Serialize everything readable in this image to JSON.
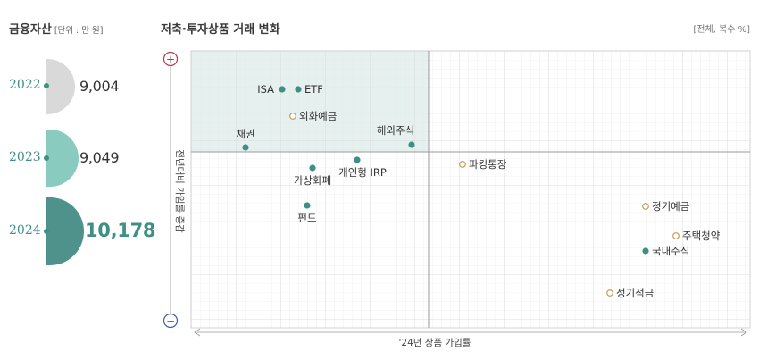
{
  "assets": {
    "title": "금융자산",
    "unit": "[단위 : 만 원]",
    "items": [
      {
        "year": "2022",
        "value": "9,004",
        "amount": 9004
      },
      {
        "year": "2023",
        "value": "9,049",
        "amount": 9049
      },
      {
        "year": "2024",
        "value": "10,178",
        "amount": 10178
      }
    ],
    "colors": [
      "#d6d6d6",
      "#86c7bc",
      "#4f928b"
    ]
  },
  "chart": {
    "title": "저축·투자상품 거래 변화",
    "scope": "[전체, 복수 %]",
    "plus_symbol": "+",
    "minus_symbol": "−"
  },
  "chart_data": {
    "type": "scatter",
    "title": "저축·투자상품 거래 변화",
    "xlabel": "'24년 상품 가입률",
    "ylabel": "전년대비 가입률 증감",
    "grid": true,
    "colors": {
      "filled": "#3f8f87",
      "hollow": "#c99a5a",
      "highlight_quadrant": "#e6f1ef"
    },
    "points": [
      {
        "label": "ISA",
        "marker": "filled"
      },
      {
        "label": "ETF",
        "marker": "filled"
      },
      {
        "label": "외화예금",
        "marker": "hollow"
      },
      {
        "label": "채권",
        "marker": "filled"
      },
      {
        "label": "해외주식",
        "marker": "filled"
      },
      {
        "label": "가상화폐",
        "marker": "filled"
      },
      {
        "label": "개인형 IRP",
        "marker": "filled"
      },
      {
        "label": "펀드",
        "marker": "filled"
      },
      {
        "label": "파킹통장",
        "marker": "hollow"
      },
      {
        "label": "정기예금",
        "marker": "hollow"
      },
      {
        "label": "주택청약",
        "marker": "hollow"
      },
      {
        "label": "국내주식",
        "marker": "filled"
      },
      {
        "label": "정기적금",
        "marker": "hollow"
      }
    ]
  }
}
